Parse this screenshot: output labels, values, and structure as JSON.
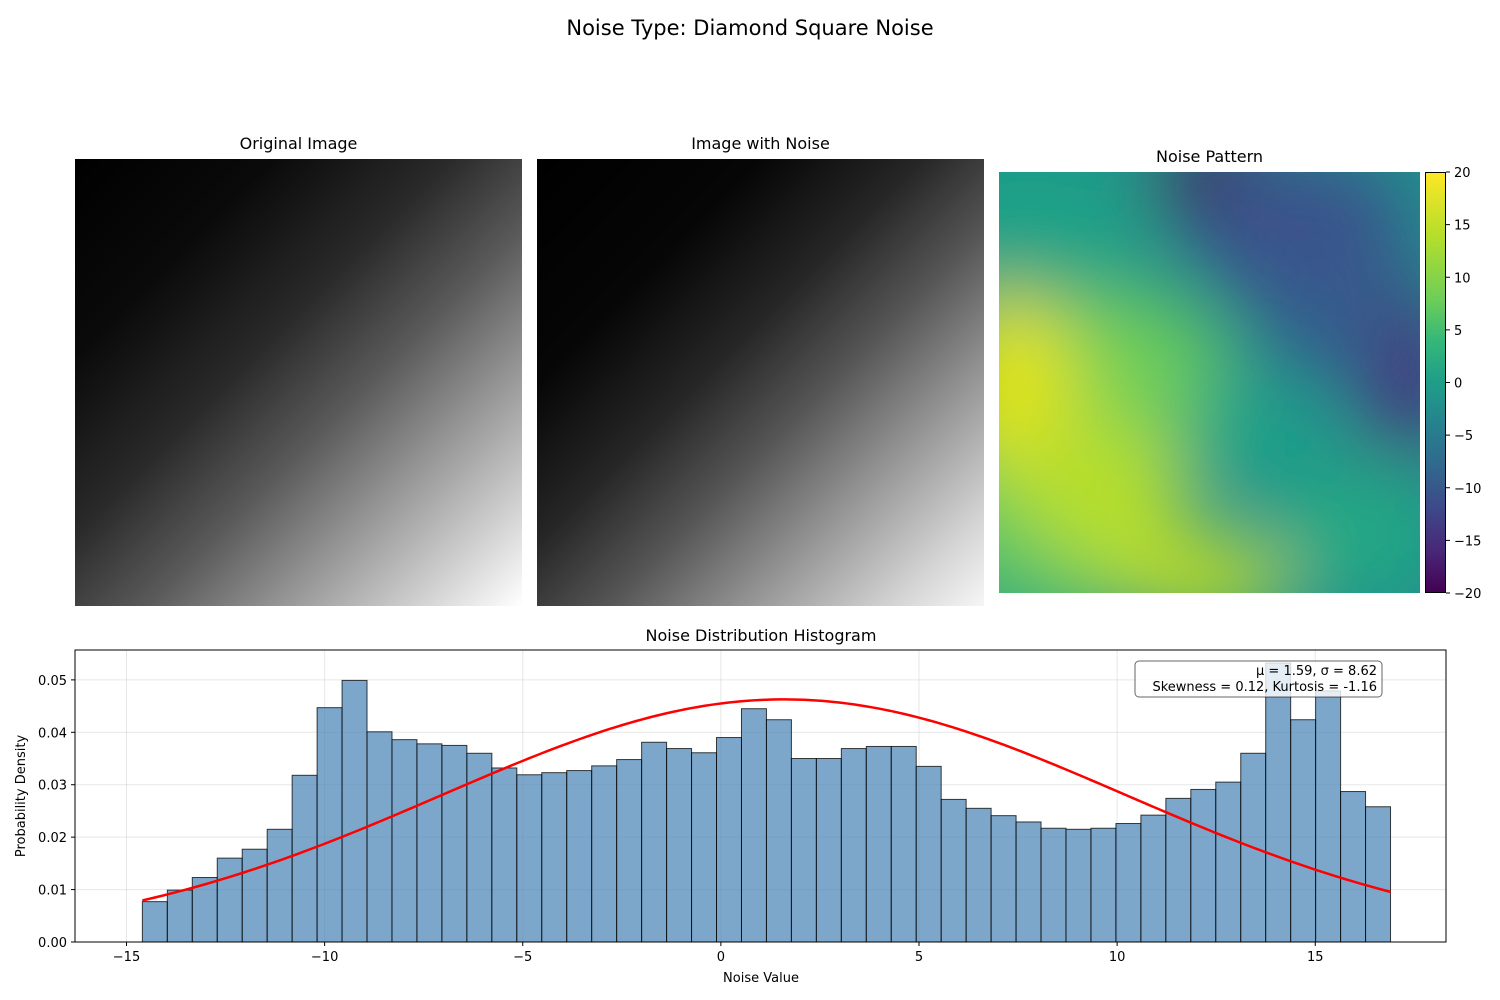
{
  "figure": {
    "title": "Noise Type: Diamond Square Noise"
  },
  "panels": {
    "original": {
      "title": "Original Image"
    },
    "noisy": {
      "title": "Image with Noise"
    },
    "noise": {
      "title": "Noise Pattern",
      "colormap": "viridis"
    }
  },
  "colorbar": {
    "ticks": [
      20,
      15,
      10,
      5,
      0,
      -5,
      -10,
      -15,
      -20
    ],
    "min": -20,
    "max": 20
  },
  "stats": {
    "line1": "μ = 1.59, σ = 8.62",
    "line2": "Skewness = 0.12, Kurtosis = -1.16"
  },
  "chart_data": {
    "type": "bar",
    "title": "Noise Distribution Histogram",
    "xlabel": "Noise Value",
    "ylabel": "Probability Density",
    "xlim": [
      -16.3,
      18.3
    ],
    "ylim": [
      0,
      0.0557
    ],
    "xticks": [
      -15,
      -10,
      -5,
      0,
      5,
      10,
      15
    ],
    "yticks": [
      0.0,
      0.01,
      0.02,
      0.03,
      0.04,
      0.05
    ],
    "grid": true,
    "bar_color": "#4682b4",
    "bin_start": -14.6,
    "bin_width": 0.63,
    "values": [
      0.0077,
      0.0099,
      0.0123,
      0.016,
      0.0177,
      0.0215,
      0.0318,
      0.0447,
      0.0499,
      0.0401,
      0.0386,
      0.0378,
      0.0375,
      0.036,
      0.0332,
      0.0319,
      0.0323,
      0.0327,
      0.0336,
      0.0348,
      0.0381,
      0.0369,
      0.0361,
      0.039,
      0.0445,
      0.0424,
      0.035,
      0.035,
      0.0369,
      0.0373,
      0.0373,
      0.0335,
      0.0272,
      0.0255,
      0.0241,
      0.0229,
      0.0217,
      0.0215,
      0.0217,
      0.0226,
      0.0242,
      0.0274,
      0.0291,
      0.0305,
      0.036,
      0.0532,
      0.0424,
      0.0479,
      0.0287,
      0.0258
    ],
    "fit": {
      "color": "#ff0000",
      "mu": 1.59,
      "sigma": 8.62,
      "x_range": [
        -14.6,
        16.9
      ]
    }
  }
}
